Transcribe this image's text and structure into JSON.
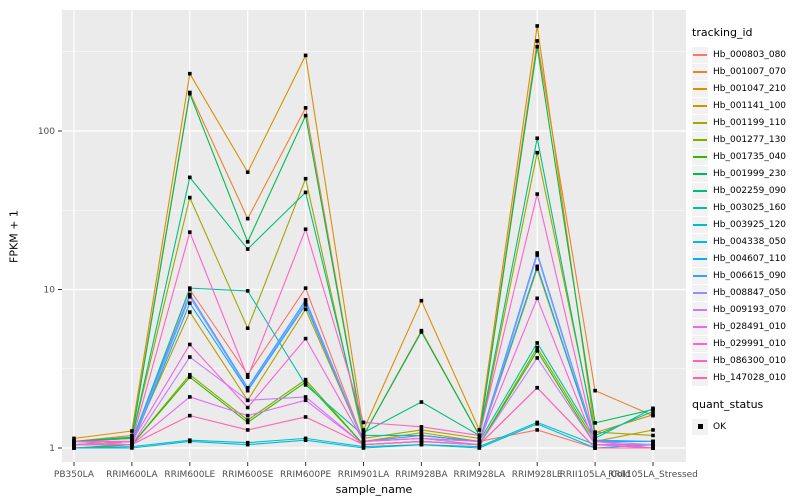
{
  "figure": {
    "xlabel": "sample_name",
    "ylabel": "FPKM + 1",
    "legend_title": "tracking_id",
    "quant_legend_title": "quant_status",
    "quant_legend_item": "OK"
  },
  "chart_data": {
    "type": "line",
    "title": "",
    "xlabel": "sample_name",
    "ylabel": "FPKM + 1",
    "yscale": "log10",
    "yticks": [
      1,
      10,
      100
    ],
    "ylim": [
      0.9,
      600
    ],
    "grid": true,
    "panel_bg": "#EBEBEB",
    "grid_color": "#FFFFFF",
    "point_marker": "black-square",
    "legend_position": "right",
    "categories": [
      "PB350LA",
      "RRIM600LA",
      "RRIM600LE",
      "RRIM600SE",
      "RRIM600PE",
      "RRIM901LA",
      "RRIM928BA",
      "RRIM928LA",
      "RRIM928LE",
      "RRII105LA_Cold",
      "RRII105LA_Stressed"
    ],
    "series": [
      {
        "name": "Hb_000803_080",
        "color": "#F8766D",
        "values": [
          1.1,
          1.1,
          10.0,
          2.9,
          10.2,
          1.1,
          1.2,
          1.1,
          1.3,
          1.0,
          1.0
        ]
      },
      {
        "name": "Hb_001007_070",
        "color": "#EA8331",
        "values": [
          1.1,
          1.2,
          175,
          28,
          140,
          1.2,
          5.5,
          1.2,
          370,
          2.3,
          1.6
        ]
      },
      {
        "name": "Hb_001047_210",
        "color": "#D89000",
        "values": [
          1.15,
          1.28,
          230,
          55,
          300,
          1.3,
          8.5,
          1.3,
          460,
          1.25,
          1.62
        ]
      },
      {
        "name": "Hb_001141_100",
        "color": "#C09B00",
        "values": [
          1.05,
          1.1,
          7.2,
          2.0,
          7.5,
          1.1,
          1.25,
          1.1,
          13.5,
          1.1,
          1.3
        ]
      },
      {
        "name": "Hb_001199_110",
        "color": "#A3A500",
        "values": [
          1.1,
          1.15,
          38,
          5.7,
          50,
          1.15,
          1.3,
          1.15,
          73,
          1.26,
          1.2
        ]
      },
      {
        "name": "Hb_001277_130",
        "color": "#7CAE00",
        "values": [
          1.0,
          1.05,
          2.9,
          1.5,
          2.7,
          1.05,
          1.1,
          1.05,
          4.3,
          1.1,
          1.1
        ]
      },
      {
        "name": "Hb_001735_040",
        "color": "#39B600",
        "values": [
          1.0,
          1.05,
          2.8,
          1.45,
          2.6,
          1.05,
          1.1,
          1.05,
          4.1,
          1.05,
          1.05
        ]
      },
      {
        "name": "Hb_001999_230",
        "color": "#00BB4E",
        "values": [
          1.1,
          1.17,
          172,
          20,
          125,
          1.2,
          5.4,
          1.2,
          340,
          1.44,
          1.75
        ]
      },
      {
        "name": "Hb_002259_090",
        "color": "#00BF7D",
        "values": [
          1.1,
          1.15,
          51,
          18,
          41,
          1.25,
          1.95,
          1.2,
          90,
          1.2,
          1.7
        ]
      },
      {
        "name": "Hb_003025_160",
        "color": "#00C1A3",
        "values": [
          1.05,
          1.1,
          10.2,
          9.8,
          2.5,
          1.2,
          1.2,
          1.1,
          4.6,
          1.15,
          1.78
        ]
      },
      {
        "name": "Hb_003925_120",
        "color": "#00BFC4",
        "values": [
          1.0,
          1.02,
          1.12,
          1.08,
          1.15,
          1.02,
          1.05,
          1.02,
          1.45,
          1.05,
          1.05
        ]
      },
      {
        "name": "Hb_004338_050",
        "color": "#00BAE0",
        "values": [
          1.0,
          1.0,
          1.1,
          1.05,
          1.12,
          1.0,
          1.05,
          1.0,
          1.42,
          1.0,
          1.05
        ]
      },
      {
        "name": "Hb_004607_110",
        "color": "#00B0F6",
        "values": [
          1.05,
          1.05,
          8.2,
          2.3,
          8.0,
          1.1,
          1.15,
          1.1,
          14,
          1.1,
          1.1
        ]
      },
      {
        "name": "Hb_006615_090",
        "color": "#35A2FF",
        "values": [
          1.05,
          1.1,
          9.3,
          2.4,
          8.6,
          1.1,
          1.2,
          1.1,
          17,
          1.12,
          1.1
        ]
      },
      {
        "name": "Hb_008847_050",
        "color": "#9590FF",
        "values": [
          1.05,
          1.05,
          9.0,
          2.35,
          8.3,
          1.1,
          1.15,
          1.05,
          16.5,
          1.1,
          1.05
        ]
      },
      {
        "name": "Hb_009193_070",
        "color": "#C77CFF",
        "values": [
          1.05,
          1.05,
          3.75,
          2.0,
          2.1,
          1.05,
          1.1,
          1.05,
          3.7,
          1.05,
          1.05
        ]
      },
      {
        "name": "Hb_028491_010",
        "color": "#E76BF3",
        "values": [
          1.05,
          1.05,
          2.1,
          1.6,
          2.0,
          1.05,
          1.1,
          1.05,
          2.4,
          1.0,
          1.0
        ]
      },
      {
        "name": "Hb_029991_010",
        "color": "#FA62DB",
        "values": [
          1.05,
          1.1,
          4.5,
          1.8,
          4.9,
          1.1,
          1.15,
          1.1,
          8.8,
          1.05,
          1.0
        ]
      },
      {
        "name": "Hb_086300_010",
        "color": "#FF61C9",
        "values": [
          1.1,
          1.1,
          23,
          2.8,
          24,
          1.45,
          1.36,
          1.2,
          40,
          1.1,
          1.0
        ]
      },
      {
        "name": "Hb_147028_010",
        "color": "#FF65AE",
        "values": [
          1.1,
          1.05,
          1.6,
          1.3,
          1.57,
          1.05,
          1.1,
          1.05,
          2.4,
          1.0,
          1.0
        ]
      }
    ],
    "quant_status_series": [
      {
        "label": "OK",
        "marker": "black-square"
      }
    ]
  },
  "style": {
    "tick_text_color": "#4D4D4D",
    "tick_mark_color": "#333333"
  }
}
